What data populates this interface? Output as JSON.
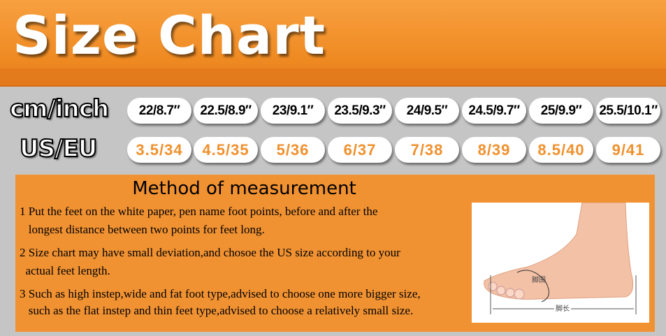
{
  "title": "Size Chart",
  "rows": {
    "cm_label": "cm/inch",
    "us_label": "US/EU",
    "cm": [
      "22/8.7″",
      "22.5/8.9″",
      "23/9.1″",
      "23.5/9.3″",
      "24/9.5″",
      "24.5/9.7″",
      "25/9.9″",
      "25.5/10.1″"
    ],
    "us": [
      "3.5/34",
      "4.5/35",
      "5/36",
      "6/37",
      "7/38",
      "8/39",
      "8.5/40",
      "9/41"
    ]
  },
  "method": {
    "title": "Method of measurement",
    "lines": [
      "1 Put the feet on the white paper, pen name foot points, before and after the",
      "   longest distance between two points for feet long.",
      "2 Size chart may have  small deviation,and chosoe the US size according to your",
      "  actual feet length.",
      "3 Such as high instep,wide and fat foot type,advised to choose one more bigger size,",
      "   such as the flat instep and thin feet type,advised to choose a relatively small size."
    ],
    "diagram": {
      "girth_label": "脚围",
      "length_label": "脚长"
    }
  },
  "colors": {
    "orange": "#f19232",
    "gray": "#c6c5c6"
  }
}
